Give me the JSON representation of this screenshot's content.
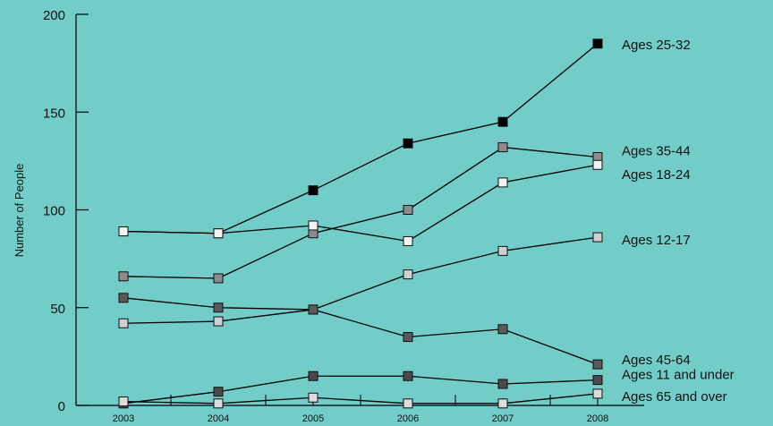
{
  "chart_data": {
    "type": "line",
    "title": "",
    "xlabel": "",
    "ylabel": "Number of People",
    "x": [
      "2003",
      "2004",
      "2005",
      "2006",
      "2007",
      "2008"
    ],
    "ylim": [
      0,
      200
    ],
    "yticks": [
      "0",
      "50",
      "100",
      "150",
      "200"
    ],
    "grid": false,
    "legend": "labels at right end of each line",
    "series": [
      {
        "name": "Ages 25-32",
        "values": [
          89,
          88,
          110,
          134,
          145,
          185
        ],
        "fill": "#000000"
      },
      {
        "name": "Ages 35-44",
        "values": [
          66,
          65,
          88,
          100,
          132,
          127
        ],
        "fill": "#8c8c8c"
      },
      {
        "name": "Ages 18-24",
        "values": [
          89,
          88,
          92,
          84,
          114,
          123
        ],
        "fill": "#f2f2f2"
      },
      {
        "name": "Ages 12-17",
        "values": [
          42,
          43,
          49,
          67,
          79,
          86
        ],
        "fill": "#cfcfcf"
      },
      {
        "name": "Ages 45-64",
        "values": [
          55,
          50,
          49,
          35,
          39,
          21
        ],
        "fill": "#5a5a5a"
      },
      {
        "name": "Ages 11 and under",
        "values": [
          1,
          7,
          15,
          15,
          11,
          13
        ],
        "fill": "#4a4a4a"
      },
      {
        "name": "Ages 65 and over",
        "values": [
          2,
          1,
          4,
          1,
          1,
          6
        ],
        "fill": "#dcdcdc"
      }
    ]
  }
}
